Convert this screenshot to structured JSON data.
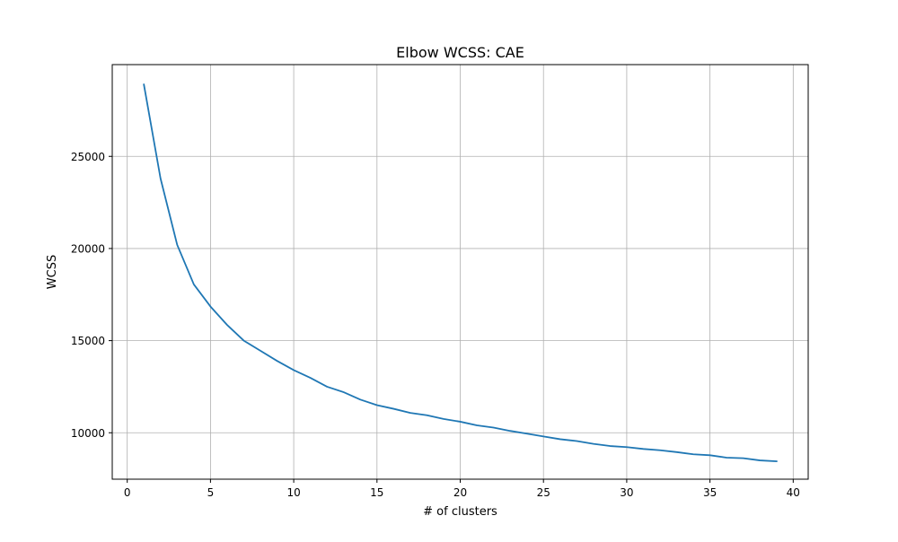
{
  "chart_data": {
    "type": "line",
    "title": "Elbow WCSS: CAE",
    "xlabel": "# of clusters",
    "ylabel": "WCSS",
    "xlim": [
      -0.9,
      40.9
    ],
    "ylim": [
      7480,
      29980
    ],
    "xticks": [
      0,
      5,
      10,
      15,
      20,
      25,
      30,
      35,
      40
    ],
    "yticks": [
      10000,
      15000,
      20000,
      25000
    ],
    "grid": true,
    "series": [
      {
        "name": "WCSS",
        "color": "#1f77b4",
        "x": [
          1,
          2,
          3,
          4,
          5,
          6,
          7,
          8,
          9,
          10,
          11,
          12,
          13,
          14,
          15,
          16,
          17,
          18,
          19,
          20,
          21,
          22,
          23,
          24,
          25,
          26,
          27,
          28,
          29,
          30,
          31,
          32,
          33,
          34,
          35,
          36,
          37,
          38,
          39
        ],
        "values": [
          28900,
          23800,
          20200,
          18050,
          16850,
          15850,
          15000,
          14450,
          13900,
          13400,
          12980,
          12500,
          12200,
          11800,
          11500,
          11300,
          11080,
          10950,
          10750,
          10600,
          10400,
          10280,
          10100,
          9950,
          9800,
          9650,
          9550,
          9400,
          9280,
          9220,
          9120,
          9050,
          8950,
          8830,
          8780,
          8650,
          8620,
          8500,
          8450
        ]
      }
    ]
  }
}
